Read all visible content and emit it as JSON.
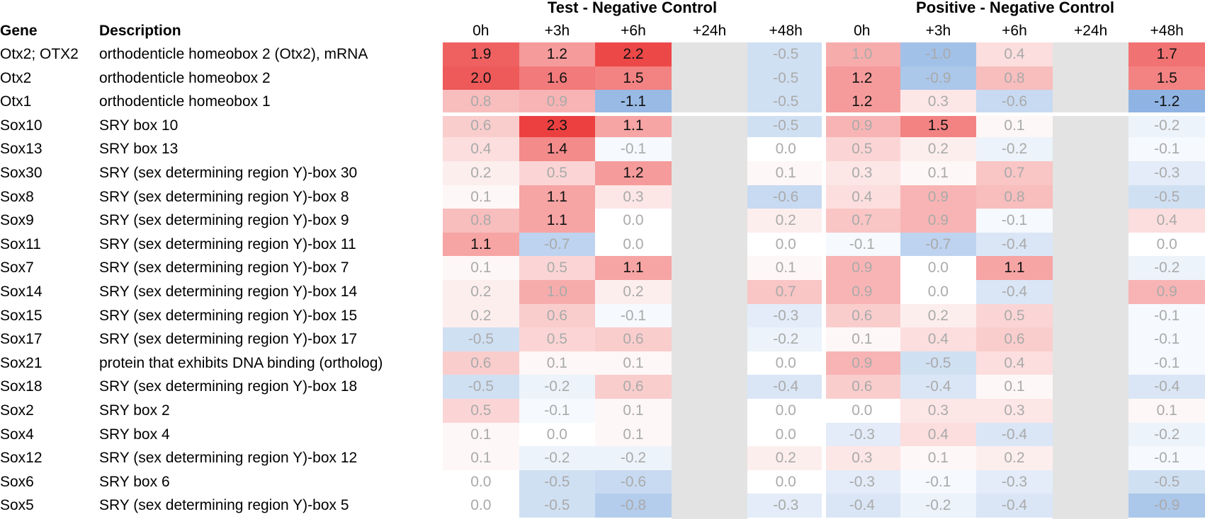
{
  "chart_data": {
    "type": "heatmap",
    "groups": [
      "Test - Negative Control",
      "Positive - Negative Control"
    ],
    "columns": [
      "0h",
      "+3h",
      "+6h",
      "+24h",
      "+48h"
    ],
    "row_headers": [
      "Gene",
      "Description"
    ],
    "rows": [
      {
        "gene": "Otx2; OTX2",
        "description": "orthodenticle homeobox 2 (Otx2), mRNA",
        "test": [
          1.9,
          1.2,
          2.2,
          null,
          -0.5
        ],
        "positive": [
          1.0,
          -1.0,
          0.4,
          null,
          1.7
        ]
      },
      {
        "gene": "Otx2",
        "description": "orthodenticle homeobox 2",
        "test": [
          2.0,
          1.6,
          1.5,
          null,
          -0.5
        ],
        "positive": [
          1.2,
          -0.9,
          0.8,
          null,
          1.5
        ]
      },
      {
        "gene": "Otx1",
        "description": "orthodenticle homeobox 1",
        "test": [
          0.8,
          0.9,
          -1.1,
          null,
          -0.5
        ],
        "positive": [
          1.2,
          0.3,
          -0.6,
          null,
          -1.2
        ]
      },
      {
        "gene": "Sox10",
        "description": "SRY box 10",
        "test": [
          0.6,
          2.3,
          1.1,
          null,
          -0.5
        ],
        "positive": [
          0.9,
          1.5,
          0.1,
          null,
          -0.2
        ]
      },
      {
        "gene": "Sox13",
        "description": "SRY box 13",
        "test": [
          0.4,
          1.4,
          -0.1,
          null,
          0.0
        ],
        "positive": [
          0.5,
          0.2,
          -0.2,
          null,
          -0.1
        ]
      },
      {
        "gene": "Sox30",
        "description": "SRY (sex determining region Y)-box 30",
        "test": [
          0.2,
          0.5,
          1.2,
          null,
          0.1
        ],
        "positive": [
          0.3,
          0.1,
          0.7,
          null,
          -0.3
        ]
      },
      {
        "gene": "Sox8",
        "description": "SRY (sex determining region Y)-box 8",
        "test": [
          0.1,
          1.1,
          0.3,
          null,
          -0.6
        ],
        "positive": [
          0.4,
          0.9,
          0.8,
          null,
          -0.5
        ]
      },
      {
        "gene": "Sox9",
        "description": "SRY (sex determining region Y)-box 9",
        "test": [
          0.8,
          1.1,
          0.0,
          null,
          0.2
        ],
        "positive": [
          0.7,
          0.9,
          -0.1,
          null,
          0.4
        ]
      },
      {
        "gene": "Sox11",
        "description": "SRY (sex determining region Y)-box 11",
        "test": [
          1.1,
          -0.7,
          0.0,
          null,
          0.0
        ],
        "positive": [
          -0.1,
          -0.7,
          -0.4,
          null,
          0.0
        ]
      },
      {
        "gene": "Sox7",
        "description": "SRY (sex determining region Y)-box 7",
        "test": [
          0.1,
          0.5,
          1.1,
          null,
          0.1
        ],
        "positive": [
          0.9,
          0.0,
          1.1,
          null,
          -0.2
        ]
      },
      {
        "gene": "Sox14",
        "description": "SRY (sex determining region Y)-box 14",
        "test": [
          0.2,
          1.0,
          0.2,
          null,
          0.7
        ],
        "positive": [
          0.9,
          0.0,
          -0.4,
          null,
          0.9
        ]
      },
      {
        "gene": "Sox15",
        "description": "SRY (sex determining region Y)-box 15",
        "test": [
          0.2,
          0.6,
          -0.1,
          null,
          -0.3
        ],
        "positive": [
          0.6,
          0.2,
          0.5,
          null,
          -0.1
        ]
      },
      {
        "gene": "Sox17",
        "description": "SRY (sex determining region Y)-box 17",
        "test": [
          -0.5,
          0.5,
          0.6,
          null,
          -0.2
        ],
        "positive": [
          0.1,
          0.4,
          0.6,
          null,
          -0.1
        ]
      },
      {
        "gene": "Sox21",
        "description": "protein that exhibits DNA binding (ortholog)",
        "test": [
          0.6,
          0.1,
          0.1,
          null,
          0.0
        ],
        "positive": [
          0.9,
          -0.5,
          0.4,
          null,
          -0.1
        ]
      },
      {
        "gene": "Sox18",
        "description": "SRY (sex determining region Y)-box 18",
        "test": [
          -0.5,
          -0.2,
          0.6,
          null,
          -0.4
        ],
        "positive": [
          0.6,
          -0.4,
          0.1,
          null,
          -0.4
        ]
      },
      {
        "gene": "Sox2",
        "description": "SRY box 2",
        "test": [
          0.5,
          -0.1,
          0.1,
          null,
          0.0
        ],
        "positive": [
          0.0,
          0.3,
          0.3,
          null,
          0.1
        ]
      },
      {
        "gene": "Sox4",
        "description": "SRY box 4",
        "test": [
          0.1,
          0.0,
          0.1,
          null,
          0.0
        ],
        "positive": [
          -0.3,
          0.4,
          -0.4,
          null,
          -0.2
        ]
      },
      {
        "gene": "Sox12",
        "description": "SRY (sex determining region Y)-box 12",
        "test": [
          0.1,
          -0.2,
          -0.2,
          null,
          0.2
        ],
        "positive": [
          0.3,
          0.1,
          0.2,
          null,
          -0.1
        ]
      },
      {
        "gene": "Sox6",
        "description": "SRY box 6",
        "test": [
          0.0,
          -0.5,
          -0.6,
          null,
          0.0
        ],
        "positive": [
          -0.3,
          -0.1,
          -0.3,
          null,
          -0.5
        ]
      },
      {
        "gene": "Sox5",
        "description": "SRY (sex determining region Y)-box 5",
        "test": [
          0.0,
          -0.5,
          -0.8,
          null,
          -0.3
        ],
        "positive": [
          -0.4,
          -0.2,
          -0.4,
          null,
          -0.9
        ]
      }
    ],
    "color_scale": {
      "negative": "#8fb4e3",
      "neutral": "#ffffff",
      "positive": "#ec4040",
      "missing": "#e3e3e3"
    }
  }
}
